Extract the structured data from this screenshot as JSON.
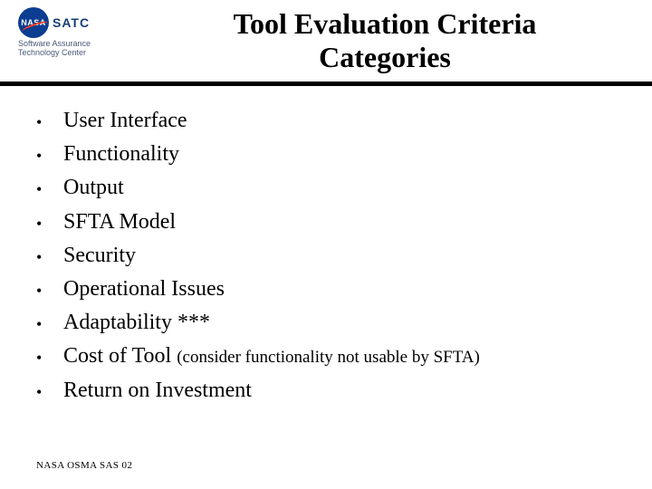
{
  "logo": {
    "nasa_label": "NASA",
    "satc_label": "SATC",
    "subtitle_line1": "Software Assurance",
    "subtitle_line2": "Technology Center"
  },
  "title_line1": "Tool Evaluation Criteria",
  "title_line2": "Categories",
  "bullets": {
    "b0": "User Interface",
    "b1": "Functionality",
    "b2": "Output",
    "b3": "SFTA Model",
    "b4": "Security",
    "b5": "Operational Issues",
    "b6": "Adaptability ***",
    "b7_main": "Cost of Tool ",
    "b7_note": "(consider functionality not usable by SFTA)",
    "b8": "Return on Investment"
  },
  "footer": "NASA OSMA SAS 02",
  "colors": {
    "nasa_blue": "#0b3d91",
    "nasa_red": "#fc3d21",
    "satc_blue": "#163f7a",
    "text": "#000000",
    "background": "#ffffff"
  }
}
